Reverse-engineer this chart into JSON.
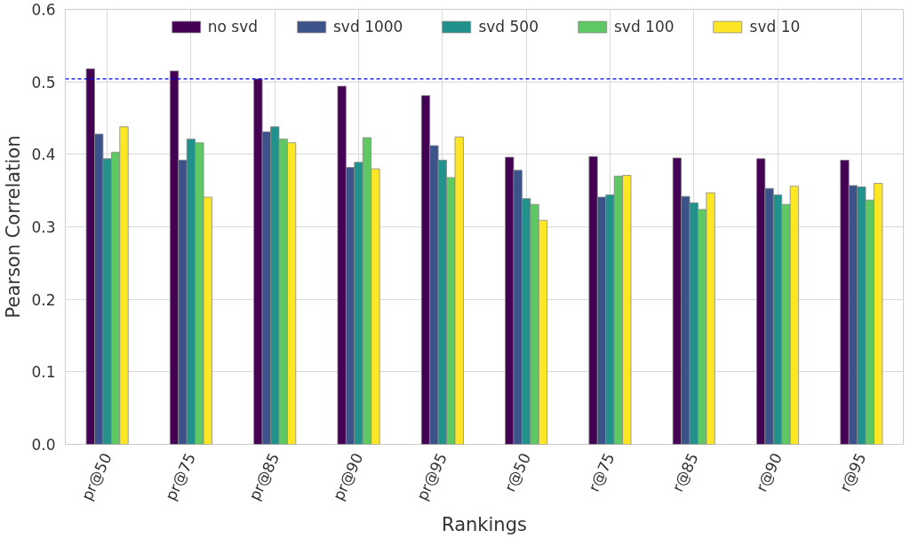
{
  "chart_data": {
    "type": "bar",
    "xlabel": "Rankings",
    "ylabel": "Pearson Correlation",
    "categories": [
      "pr@50",
      "pr@75",
      "pr@85",
      "pr@90",
      "pr@95",
      "r@50",
      "r@75",
      "r@85",
      "r@90",
      "r@95"
    ],
    "series": [
      {
        "name": "no svd",
        "color": "#440154",
        "values": [
          0.518,
          0.515,
          0.504,
          0.494,
          0.481,
          0.396,
          0.397,
          0.395,
          0.394,
          0.392
        ]
      },
      {
        "name": "svd 1000",
        "color": "#3b528b",
        "values": [
          0.428,
          0.392,
          0.431,
          0.382,
          0.412,
          0.378,
          0.341,
          0.342,
          0.353,
          0.357
        ]
      },
      {
        "name": "svd 500",
        "color": "#21918c",
        "values": [
          0.394,
          0.421,
          0.438,
          0.389,
          0.392,
          0.339,
          0.344,
          0.333,
          0.344,
          0.355
        ]
      },
      {
        "name": "svd 100",
        "color": "#5ec962",
        "values": [
          0.403,
          0.416,
          0.421,
          0.423,
          0.368,
          0.331,
          0.37,
          0.324,
          0.331,
          0.337
        ]
      },
      {
        "name": "svd 10",
        "color": "#fde725",
        "values": [
          0.438,
          0.341,
          0.416,
          0.38,
          0.424,
          0.309,
          0.371,
          0.347,
          0.356,
          0.36
        ]
      }
    ],
    "ylim": [
      0,
      0.6
    ],
    "yticks": [
      {
        "value": 0,
        "label": "0.0"
      },
      0.1,
      0.2,
      0.3,
      0.4,
      0.5,
      0.6
    ],
    "ref_lines": [
      {
        "axis": "y",
        "value": 0.504,
        "color": "#0000ff",
        "line_style": "dashed"
      }
    ],
    "grid": true,
    "legend": "top"
  }
}
